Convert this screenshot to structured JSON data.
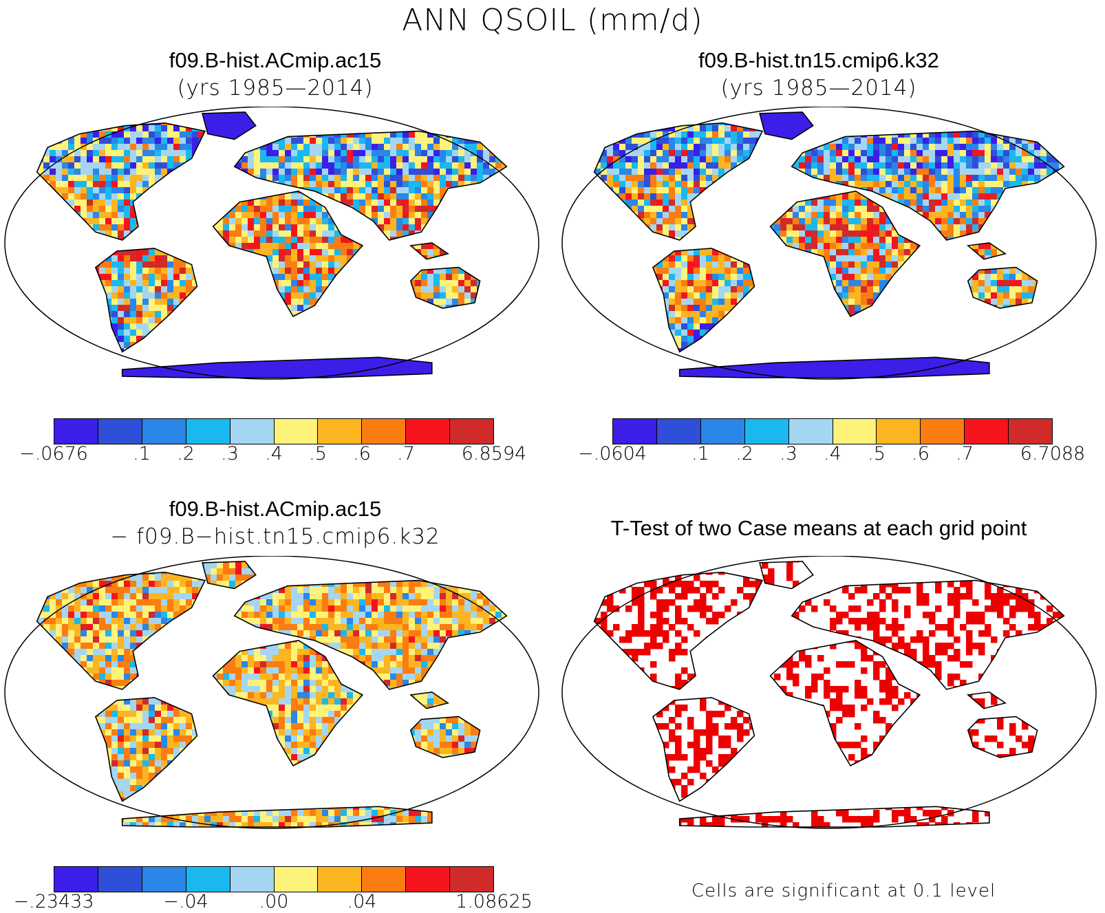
{
  "title": "ANN QSOIL (mm/d)",
  "panels": [
    {
      "title": "f09.B-hist.ACmip.ac15",
      "subtitle": "(yrs 1985—2014)",
      "colorbar": {
        "colors": [
          "#3b1fe8",
          "#2f4fd9",
          "#2a86e8",
          "#1ab8ee",
          "#a4d6f2",
          "#fdf27a",
          "#fbb521",
          "#fb7d12",
          "#f5141e",
          "#d12a2a"
        ],
        "tick_labels": [
          "−.0676",
          ".1",
          ".2",
          ".3",
          ".4",
          ".5",
          ".6",
          ".7",
          "6.8594"
        ]
      }
    },
    {
      "title": "f09.B-hist.tn15.cmip6.k32",
      "subtitle": "(yrs 1985—2014)",
      "colorbar": {
        "colors": [
          "#3b1fe8",
          "#2f4fd9",
          "#2a86e8",
          "#1ab8ee",
          "#a4d6f2",
          "#fdf27a",
          "#fbb521",
          "#fb7d12",
          "#f5141e",
          "#d12a2a"
        ],
        "tick_labels": [
          "−.0604",
          ".1",
          ".2",
          ".3",
          ".4",
          ".5",
          ".6",
          ".7",
          "6.7088"
        ]
      }
    },
    {
      "title": "f09.B-hist.ACmip.ac15",
      "subtitle": "− f09.B−hist.tn15.cmip6.k32",
      "colorbar": {
        "colors": [
          "#3b1fe8",
          "#2f4fd9",
          "#2a86e8",
          "#1ab8ee",
          "#a4d6f2",
          "#fdf27a",
          "#fbb521",
          "#fb7d12",
          "#f5141e",
          "#d12a2a"
        ],
        "tick_labels": [
          "−.23433",
          "−.04",
          ".00",
          ".04",
          "1.08625"
        ]
      }
    },
    {
      "title": "T-Test of two Case means at each grid point",
      "note": "Cells are significant at 0.1 level",
      "significance_color": "#ee0000"
    }
  ]
}
